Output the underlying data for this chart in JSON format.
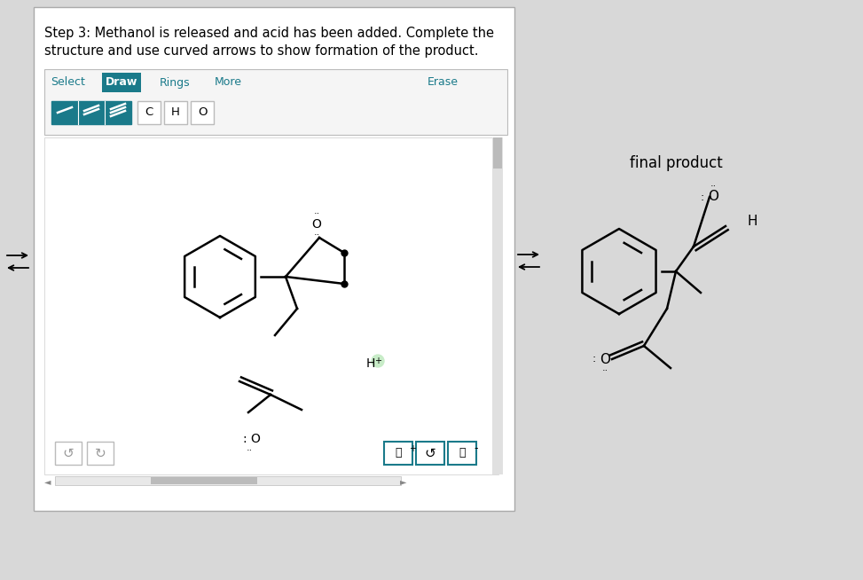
{
  "bg_color": "#d8d8d8",
  "panel_bg": "#ffffff",
  "teal_color": "#1a7a8a",
  "title_text1": "Step 3: Methanol is released and acid has been added. Complete the",
  "title_text2": "structure and use curved arrows to show formation of the product.",
  "final_product_label": "final product",
  "tabs": [
    "Select",
    "Draw",
    "Rings",
    "More",
    "Erase"
  ],
  "active_tab_idx": 1,
  "atom_buttons": [
    "C",
    "H",
    "O"
  ]
}
